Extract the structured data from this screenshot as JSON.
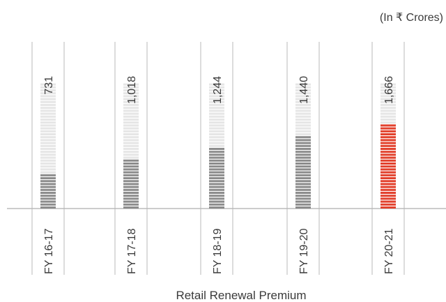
{
  "chart_data": {
    "type": "bar",
    "unit_note": "(In ₹ Crores)",
    "xlabel": "Retail Renewal Premium",
    "categories": [
      "FY 16-17",
      "FY 17-18",
      "FY 18-19",
      "FY 19-20",
      "FY 20-21"
    ],
    "values": [
      731,
      1018,
      1244,
      1440,
      1666
    ],
    "value_labels": [
      "731",
      "1,018",
      "1,244",
      "1,440",
      "1,666"
    ],
    "ylim": [
      0,
      2500
    ],
    "orientation": "vertical",
    "label_rotation": "vertical",
    "grid": false,
    "legend": "none",
    "colors": {
      "bar": "#8c8c8c",
      "highlight_bar": "#e2412d",
      "track": "#e6e6e6",
      "divider": "#b8b8b8",
      "baseline": "#9a9a9a"
    },
    "highlight_index": 4
  }
}
